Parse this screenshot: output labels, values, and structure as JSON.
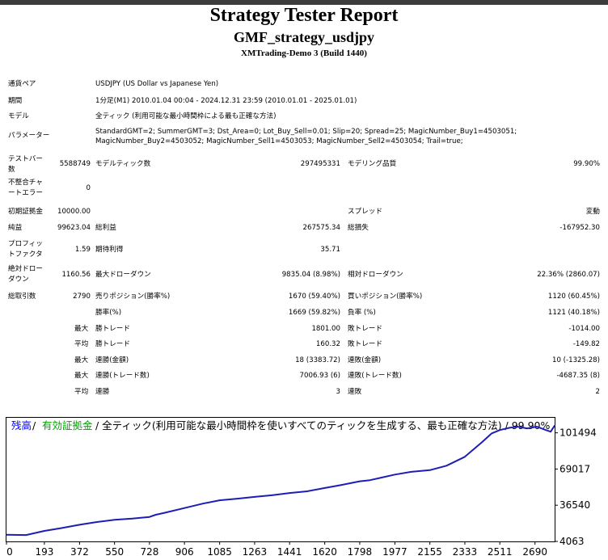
{
  "header": {
    "title": "Strategy Tester Report",
    "subtitle": "GMF_strategy_usdjpy",
    "server": "XMTrading-Demo 3 (Build 1440)"
  },
  "info": {
    "symbol_label": "通貨ペア",
    "symbol_value": "USDJPY (US Dollar vs Japanese Yen)",
    "period_label": "期間",
    "period_value": "1分足(M1) 2010.01.04 00:04 - 2024.12.31 23:59 (2010.01.01 - 2025.01.01)",
    "model_label": "モデル",
    "model_value": "全ティック (利用可能な最小時間枠による最も正確な方法)",
    "params_label": "パラメーター",
    "params_line1": "StandardGMT=2; SummerGMT=3; Dst_Area=0; Lot_Buy_Sell=0.01; Slip=20; Spread=25; MagicNumber_Buy1=4503051;",
    "params_line2": "MagicNumber_Buy2=4503052; MagicNumber_Sell1=4503053; MagicNumber_Sell2=4503054; Trail=true;"
  },
  "stats": {
    "bars_label_1": "テストバー",
    "bars_label_2": "数",
    "bars_value": "5588749",
    "ticks_label": "モデルティック数",
    "ticks_value": "297495331",
    "quality_label": "モデリング品質",
    "quality_value": "99.90%",
    "mismatch_label_1": "不整合チャ",
    "mismatch_label_2": "ートエラー",
    "mismatch_value": "0",
    "deposit_label": "初期証拠金",
    "deposit_value": "10000.00",
    "spread_label": "スプレッド",
    "spread_value": "変動",
    "net_label": "純益",
    "net_value": "99623.04",
    "gross_profit_label": "総利益",
    "gross_profit_value": "267575.34",
    "gross_loss_label": "総損失",
    "gross_loss_value": "-167952.30",
    "pf_label_1": "プロフィッ",
    "pf_label_2": "トファクタ",
    "pf_value": "1.59",
    "expected_label": "期待利得",
    "expected_value": "35.71",
    "abs_dd_label_1": "絶対ドロー",
    "abs_dd_label_2": "ダウン",
    "abs_dd_value": "1160.56",
    "max_dd_label": "最大ドローダウン",
    "max_dd_value": "9835.04 (8.98%)",
    "rel_dd_label": "相対ドローダウン",
    "rel_dd_value": "22.36% (2860.07)",
    "trades_label": "総取引数",
    "trades_value": "2790",
    "short_label": "売りポジション(勝率%)",
    "short_value": "1670 (59.40%)",
    "long_label": "買いポジション(勝率%)",
    "long_value": "1120 (60.45%)",
    "win_label": "勝率(%)",
    "win_value": "1669 (59.82%)",
    "loss_label": "負率 (%)",
    "loss_value": "1121 (40.18%)",
    "max_word": "最大",
    "avg_word": "平均",
    "max_win_label": "勝トレード",
    "max_win_value": "1801.00",
    "max_loss_label": "敗トレード",
    "max_loss_value": "-1014.00",
    "avg_win_label": "勝トレード",
    "avg_win_value": "160.32",
    "avg_loss_label": "敗トレード",
    "avg_loss_value": "-149.82",
    "cons_win_amt_label": "連勝(金額)",
    "cons_win_amt_value": "18 (3383.72)",
    "cons_loss_amt_label": "連敗(金額)",
    "cons_loss_amt_value": "10 (-1325.28)",
    "cons_win_cnt_label": "連勝(トレード数)",
    "cons_win_cnt_value": "7006.93 (6)",
    "cons_loss_cnt_label": "連敗(トレード数)",
    "cons_loss_cnt_value": "-4687.35 (8)",
    "avg_cons_win_label": "連勝",
    "avg_cons_win_value": "3",
    "avg_cons_loss_label": "連敗",
    "avg_cons_loss_value": "2"
  },
  "legend": {
    "balance": "残高",
    "sep": "/",
    "equity": "有効証拠金",
    "rest": "/ 全ティック(利用可能な最小時間枠を使いすべてのティックを生成する、最も正確な方法) / 99.90%"
  },
  "colors": {
    "balance": "#0000ff",
    "equity": "#00a000",
    "line": "#1e1eb4",
    "grid": "#c8c8c8"
  },
  "chart_data": {
    "type": "line",
    "xlabel": "",
    "ylabel": "",
    "x_ticks": [
      "0",
      "193",
      "372",
      "550",
      "728",
      "906",
      "1085",
      "1263",
      "1441",
      "1620",
      "1798",
      "1977",
      "2155",
      "2333",
      "2511",
      "2690"
    ],
    "y_ticks": [
      "4063",
      "36540",
      "69017",
      "101494"
    ],
    "xlim": [
      0,
      2790
    ],
    "ylim": [
      4063,
      115000
    ],
    "grid": false,
    "legend_position": "top-left",
    "series": [
      {
        "name": "残高",
        "x": [
          0,
          100,
          193,
          280,
          372,
          460,
          550,
          640,
          728,
          760,
          800,
          906,
          1000,
          1085,
          1180,
          1263,
          1350,
          1441,
          1530,
          1620,
          1700,
          1798,
          1850,
          1900,
          1977,
          2060,
          2155,
          2240,
          2333,
          2420,
          2470,
          2511,
          2560,
          2600,
          2650,
          2700,
          2745,
          2770,
          2790
        ],
        "values": [
          10000,
          9800,
          13500,
          16000,
          19000,
          21500,
          23500,
          24500,
          26000,
          28000,
          29500,
          34000,
          38000,
          41000,
          42500,
          44000,
          45500,
          47500,
          49000,
          52000,
          54500,
          58000,
          59000,
          61000,
          64000,
          66500,
          68000,
          72000,
          80000,
          93000,
          101000,
          104000,
          106000,
          107000,
          105500,
          107000,
          104000,
          102500,
          108000
        ]
      }
    ]
  }
}
